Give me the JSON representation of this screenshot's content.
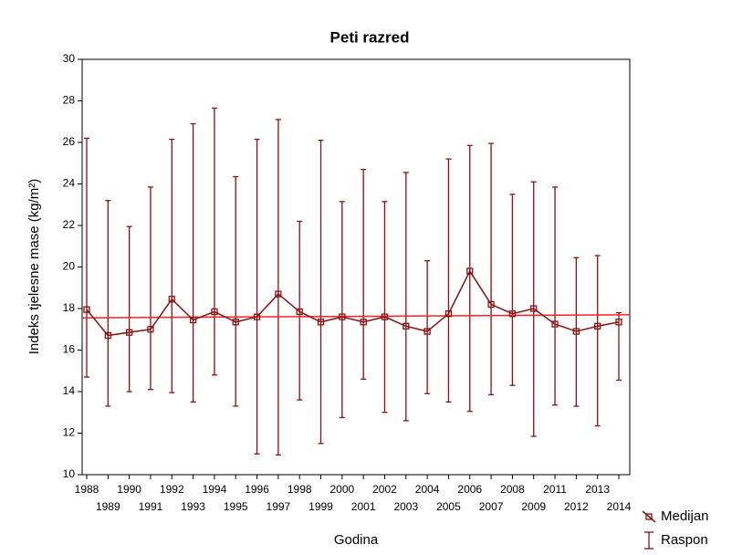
{
  "chart_data": {
    "type": "line",
    "title": "Peti razred",
    "x_label": "Godina",
    "y_label": "Indeks tjelesne mase (kg/m²)",
    "categories": [
      "1988",
      "1989",
      "1990",
      "1991",
      "1992",
      "1993",
      "1994",
      "1995",
      "1996",
      "1997",
      "1998",
      "1999",
      "2000",
      "2001",
      "2002",
      "2003",
      "2004",
      "2005",
      "2006",
      "2007",
      "2008",
      "2009",
      "2011",
      "2012",
      "2013",
      "2014"
    ],
    "series": [
      {
        "name": "Medijan",
        "color": "#8b1010",
        "values": [
          17.95,
          16.7,
          16.85,
          17.0,
          18.45,
          17.45,
          17.85,
          17.35,
          17.6,
          18.7,
          17.85,
          17.35,
          17.6,
          17.35,
          17.6,
          17.15,
          16.9,
          17.75,
          19.8,
          18.2,
          17.75,
          18.0,
          17.25,
          16.9,
          17.15,
          17.35
        ]
      }
    ],
    "range": {
      "name": "Raspon",
      "color": "#8b1010",
      "low": [
        14.7,
        13.3,
        14.0,
        14.1,
        13.95,
        13.5,
        14.8,
        13.3,
        11.0,
        10.95,
        13.6,
        11.5,
        12.75,
        14.6,
        13.0,
        12.6,
        13.9,
        13.5,
        13.05,
        13.85,
        14.3,
        11.85,
        13.35,
        13.3,
        12.35,
        14.55
      ],
      "high": [
        26.2,
        23.2,
        21.95,
        23.85,
        26.15,
        26.9,
        27.65,
        24.35,
        26.15,
        27.1,
        22.2,
        26.1,
        23.15,
        24.7,
        23.15,
        24.55,
        20.3,
        25.2,
        25.85,
        25.95,
        23.5,
        24.1,
        23.85,
        20.45,
        20.55,
        17.8
      ]
    },
    "trend_line": {
      "color": "#ff2020",
      "values": [
        17.55,
        17.7
      ]
    },
    "ylim": [
      10,
      30
    ],
    "yticks": [
      10,
      12,
      14,
      16,
      18,
      20,
      22,
      24,
      26,
      28,
      30
    ]
  }
}
